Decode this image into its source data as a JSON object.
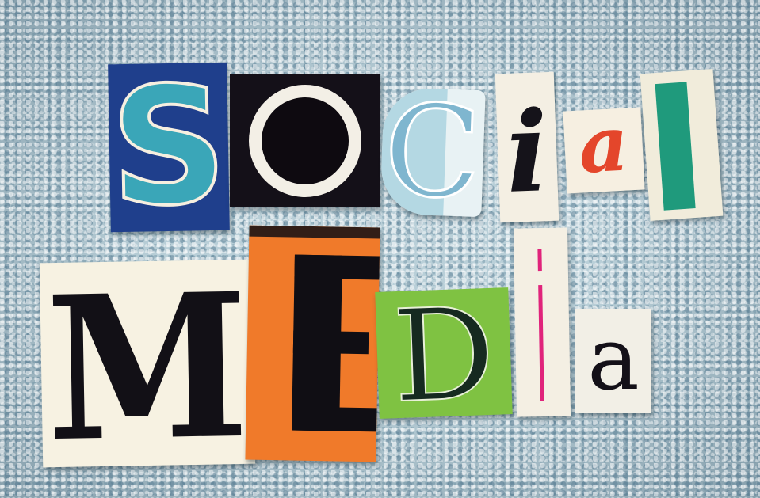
{
  "image": {
    "word_top": {
      "letters": [
        {
          "char": "S"
        },
        {
          "char": "O"
        },
        {
          "char": "C"
        },
        {
          "char": "i"
        },
        {
          "char": "a"
        },
        {
          "char": "l"
        }
      ]
    },
    "word_bottom": {
      "letters": [
        {
          "char": "M"
        },
        {
          "char": "E"
        },
        {
          "char": "D"
        },
        {
          "char": "i"
        },
        {
          "char": "a"
        }
      ]
    },
    "colors": {
      "towel": "#b9cfd8",
      "s_tile": "#1f3f8c",
      "s_letter": "#3aa6b8",
      "o_tile": "#141018",
      "c_tile": "#e8f2f4",
      "c_letter": "#7fb6cf",
      "i_tile": "#f4efe3",
      "a_tile": "#f6efe1",
      "a_letter": "#e4462b",
      "l_tile": "#f1ecdb",
      "l_letter": "#1f9a7c",
      "m_tile": "#f7f2e2",
      "e_tile": "#f07a2a",
      "d_tile": "#7fc242",
      "d_inner": "#e8f0d8",
      "i2_tile": "#f4efe3",
      "i2_stroke": "#e0237b",
      "a2_tile": "#f2efe6"
    }
  }
}
